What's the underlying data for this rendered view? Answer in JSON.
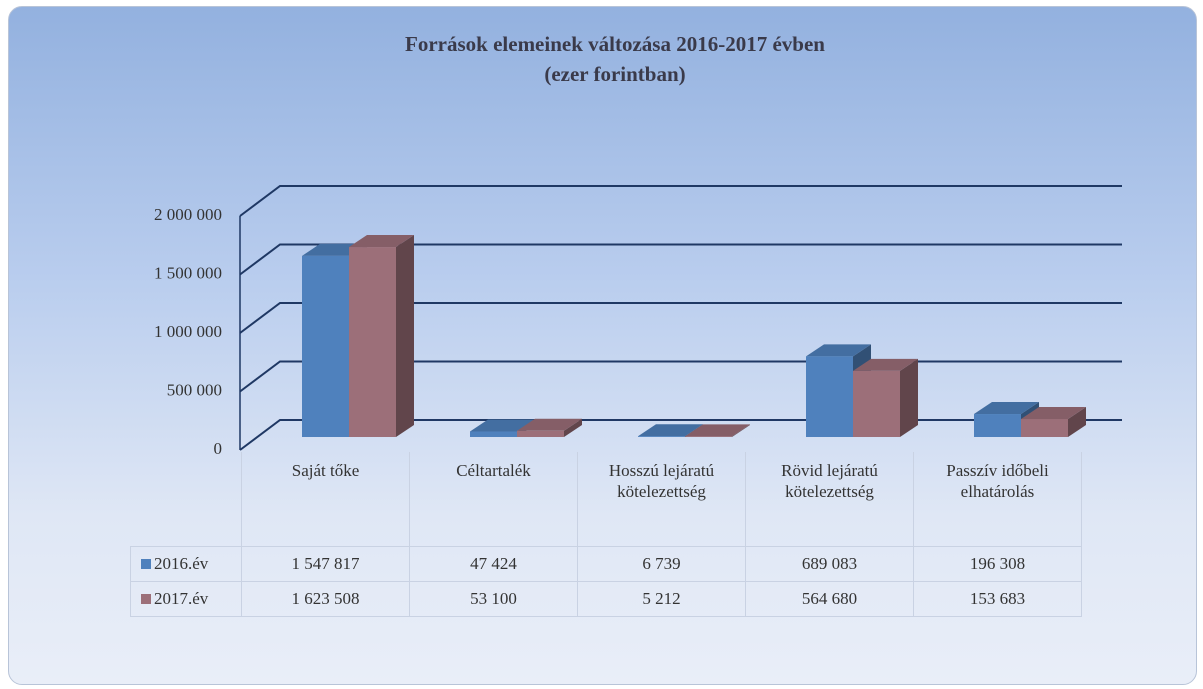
{
  "chart_data": {
    "type": "bar",
    "title": "Források elemeinek változása 2016-2017 évben",
    "subtitle": "(ezer forintban)",
    "categories": [
      "Saját tőke",
      "Céltartalék",
      "Hosszú lejáratú kötelezettség",
      "Rövid lejáratú kötelezettség",
      "Passzív időbeli elhatárolás"
    ],
    "series": [
      {
        "name": "2016.év",
        "color": "#4f81bd",
        "values": [
          1547817,
          47424,
          6739,
          689083,
          196308
        ],
        "value_labels": [
          "1 547 817",
          "47 424",
          "6 739",
          "689 083",
          "196 308"
        ]
      },
      {
        "name": "2017.év",
        "color": "#9c6f79",
        "values": [
          1623508,
          53100,
          5212,
          564680,
          153683
        ],
        "value_labels": [
          "1 623 508",
          "53 100",
          "5 212",
          "564 680",
          "153 683"
        ]
      }
    ],
    "ylim": [
      0,
      2000000
    ],
    "yticks": [
      0,
      {
        "value": 500000,
        "label": "500 000"
      },
      {
        "value": 1000000,
        "label": "1 000 000"
      },
      {
        "value": 1500000,
        "label": "1 500 000"
      },
      {
        "value": 2000000,
        "label": "2 000 000"
      }
    ],
    "grid": true
  }
}
